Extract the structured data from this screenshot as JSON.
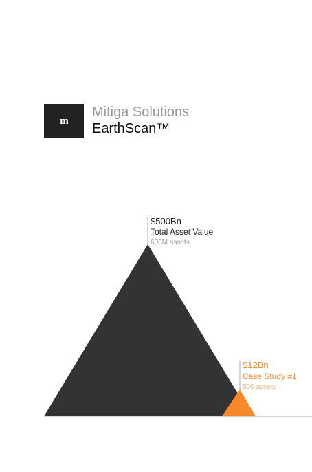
{
  "brand": {
    "logo_text": "m",
    "company": "Mitiga Solutions",
    "product": "EarthScan™"
  },
  "chart_data": {
    "type": "area",
    "series": [
      {
        "value_label": "$500Bn",
        "name": "Total Asset Value",
        "count_label": "600M assets",
        "value_bn": 500,
        "assets": 600000000,
        "color": "#333333"
      },
      {
        "value_label": "$12Bn",
        "name": "Case Study #1",
        "count_label": "500 assets",
        "value_bn": 12,
        "assets": 500,
        "color": "#f7892b"
      }
    ]
  },
  "colors": {
    "logo_bg": "#222222",
    "company_text": "#999999",
    "product_text": "#111111",
    "leader_line": "#aaaaaa",
    "baseline": "#bbbbbb",
    "total_value_text": "#222222",
    "total_count_text": "#999999",
    "case_text": "#f7892b",
    "case_count_text": "#f9b37a"
  }
}
